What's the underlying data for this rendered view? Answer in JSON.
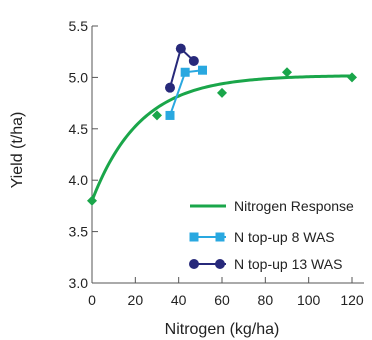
{
  "chart_data": {
    "type": "line",
    "xlabel": "Nitrogen (kg/ha)",
    "ylabel": "Yield (t/ha)",
    "xlim": [
      0,
      120
    ],
    "ylim": [
      3.0,
      5.5
    ],
    "x_ticks": [
      0,
      20,
      40,
      60,
      80,
      100,
      120
    ],
    "y_ticks": [
      3.0,
      3.5,
      4.0,
      4.5,
      5.0,
      5.5
    ],
    "x_tick_labels": [
      "0",
      "20",
      "40",
      "60",
      "80",
      "100",
      "120"
    ],
    "y_tick_labels": [
      "3.0",
      "3.5",
      "4.0",
      "4.5",
      "5.0",
      "5.5"
    ],
    "grid": false,
    "legend_position": "bottom-right",
    "series": [
      {
        "name": "Nitrogen Response",
        "kind": "fitted-curve",
        "color": "#1aa64a",
        "marker": "diamond",
        "points": [
          {
            "x": 0,
            "y": 3.8
          },
          {
            "x": 30,
            "y": 4.63
          },
          {
            "x": 60,
            "y": 4.85
          },
          {
            "x": 90,
            "y": 5.05
          },
          {
            "x": 120,
            "y": 5.0
          }
        ],
        "curve": {
          "asymptote": 5.02,
          "start": 3.8,
          "rate": 0.045
        }
      },
      {
        "name": "N top-up 8 WAS",
        "kind": "line",
        "color": "#29a8e0",
        "marker": "square",
        "points": [
          {
            "x": 36,
            "y": 4.63
          },
          {
            "x": 43,
            "y": 5.05
          },
          {
            "x": 51,
            "y": 5.07
          }
        ]
      },
      {
        "name": "N top-up 13 WAS",
        "kind": "line",
        "color": "#27297a",
        "marker": "circle",
        "points": [
          {
            "x": 36,
            "y": 4.9
          },
          {
            "x": 41,
            "y": 5.28
          },
          {
            "x": 47,
            "y": 5.16
          }
        ]
      }
    ]
  }
}
